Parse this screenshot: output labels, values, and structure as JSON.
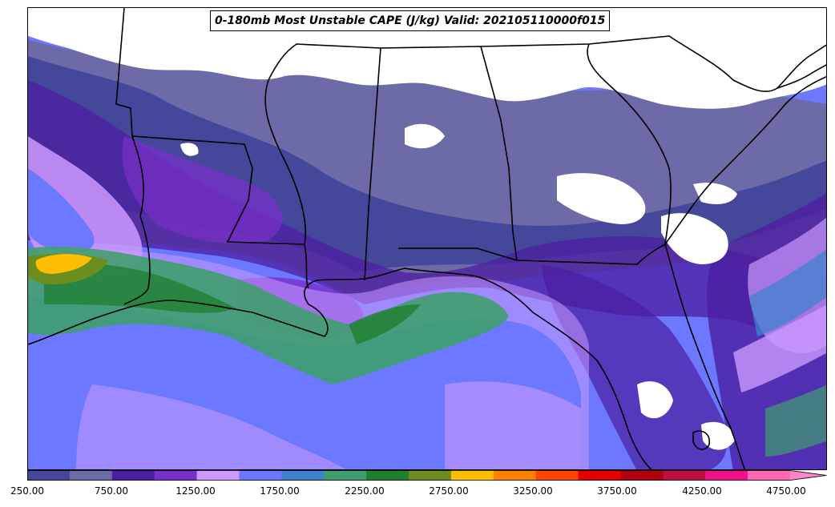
{
  "title": "0-180mb Most Unstable CAPE (J/kg) Valid: 202105110000f015",
  "colorbar": {
    "tick_labels": [
      "250.00",
      "750.00",
      "1250.00",
      "1750.00",
      "2250.00",
      "2750.00",
      "3250.00",
      "3750.00",
      "4250.00",
      "4750.00"
    ],
    "min": 250,
    "max": 5000,
    "step": 250,
    "extend": "max",
    "colors": [
      "#45489a",
      "#6d6aa8",
      "#4c1ea0",
      "#7b2fc9",
      "#cc99ff",
      "#6b78ff",
      "#3f83d0",
      "#3f9e6f",
      "#1f7f2f",
      "#6b8e1e",
      "#ffbf00",
      "#ff7f00",
      "#ff4500",
      "#e60000",
      "#b00010",
      "#c01040",
      "#f0108a",
      "#ff69b4",
      "#ff85c8"
    ]
  },
  "map": {
    "region": "Southeastern United States and Gulf of Mexico",
    "background_color": "#ffffff",
    "boundary_color": "#000000"
  }
}
